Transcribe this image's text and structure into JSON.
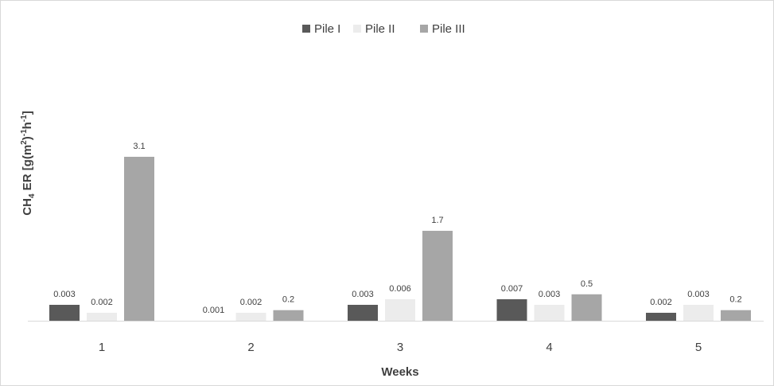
{
  "chart_data": {
    "type": "bar",
    "title": "",
    "xlabel": "Weeks",
    "ylabel": {
      "base": "CH",
      "sub": "4",
      "mid": " ER [g(m",
      "sup1": "2",
      "mid2": ")",
      "sup2": "-1",
      "mid3": "h",
      "sup3": "-1",
      "end": "]"
    },
    "categories": [
      "1",
      "2",
      "3",
      "4",
      "5"
    ],
    "series": [
      {
        "name": "Pile I",
        "color": "#595959",
        "values": [
          0.003,
          0.001,
          0.003,
          0.007,
          0.002
        ],
        "labels": [
          "0.003",
          "0.001",
          "0.003",
          "0.007",
          "0.002"
        ]
      },
      {
        "name": "Pile II",
        "color": "#ececec",
        "values": [
          0.002,
          0.002,
          0.006,
          0.003,
          0.003
        ],
        "labels": [
          "0.002",
          "0.002",
          "0.006",
          "0.003",
          "0.003"
        ]
      },
      {
        "name": "Pile III",
        "color": "#a6a6a6",
        "values": [
          3.1,
          0.2,
          1.7,
          0.5,
          0.2
        ],
        "labels": [
          "3.1",
          "0.2",
          "1.7",
          "0.5",
          "0.2"
        ]
      }
    ],
    "legend_position": "top-center",
    "grid": false,
    "y_axis_visible": false
  }
}
